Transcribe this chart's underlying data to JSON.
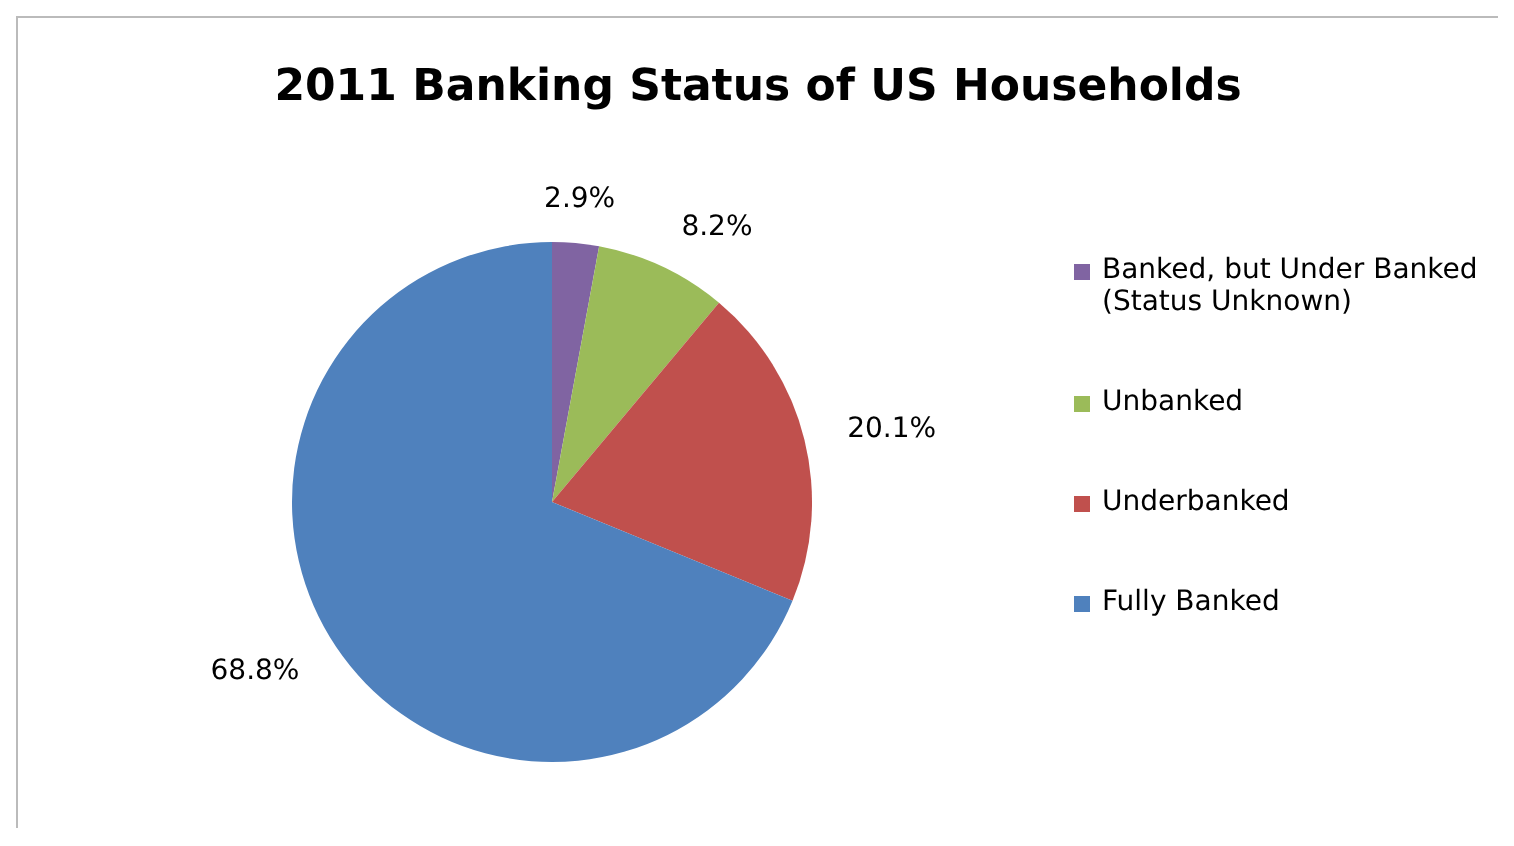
{
  "chart_data": {
    "type": "pie",
    "title": "2011 Banking Status of US Households",
    "categories": [
      "Banked, but Under Banked (Status Unknown)",
      "Unbanked",
      "Underbanked",
      "Fully Banked"
    ],
    "values": [
      2.9,
      8.2,
      20.1,
      68.8
    ],
    "colors": [
      "#8064a2",
      "#9bbb59",
      "#c0504d",
      "#4f81bd"
    ],
    "value_labels": [
      "2.9%",
      "8.2%",
      "20.1%",
      "68.8%"
    ],
    "legend": "right"
  }
}
